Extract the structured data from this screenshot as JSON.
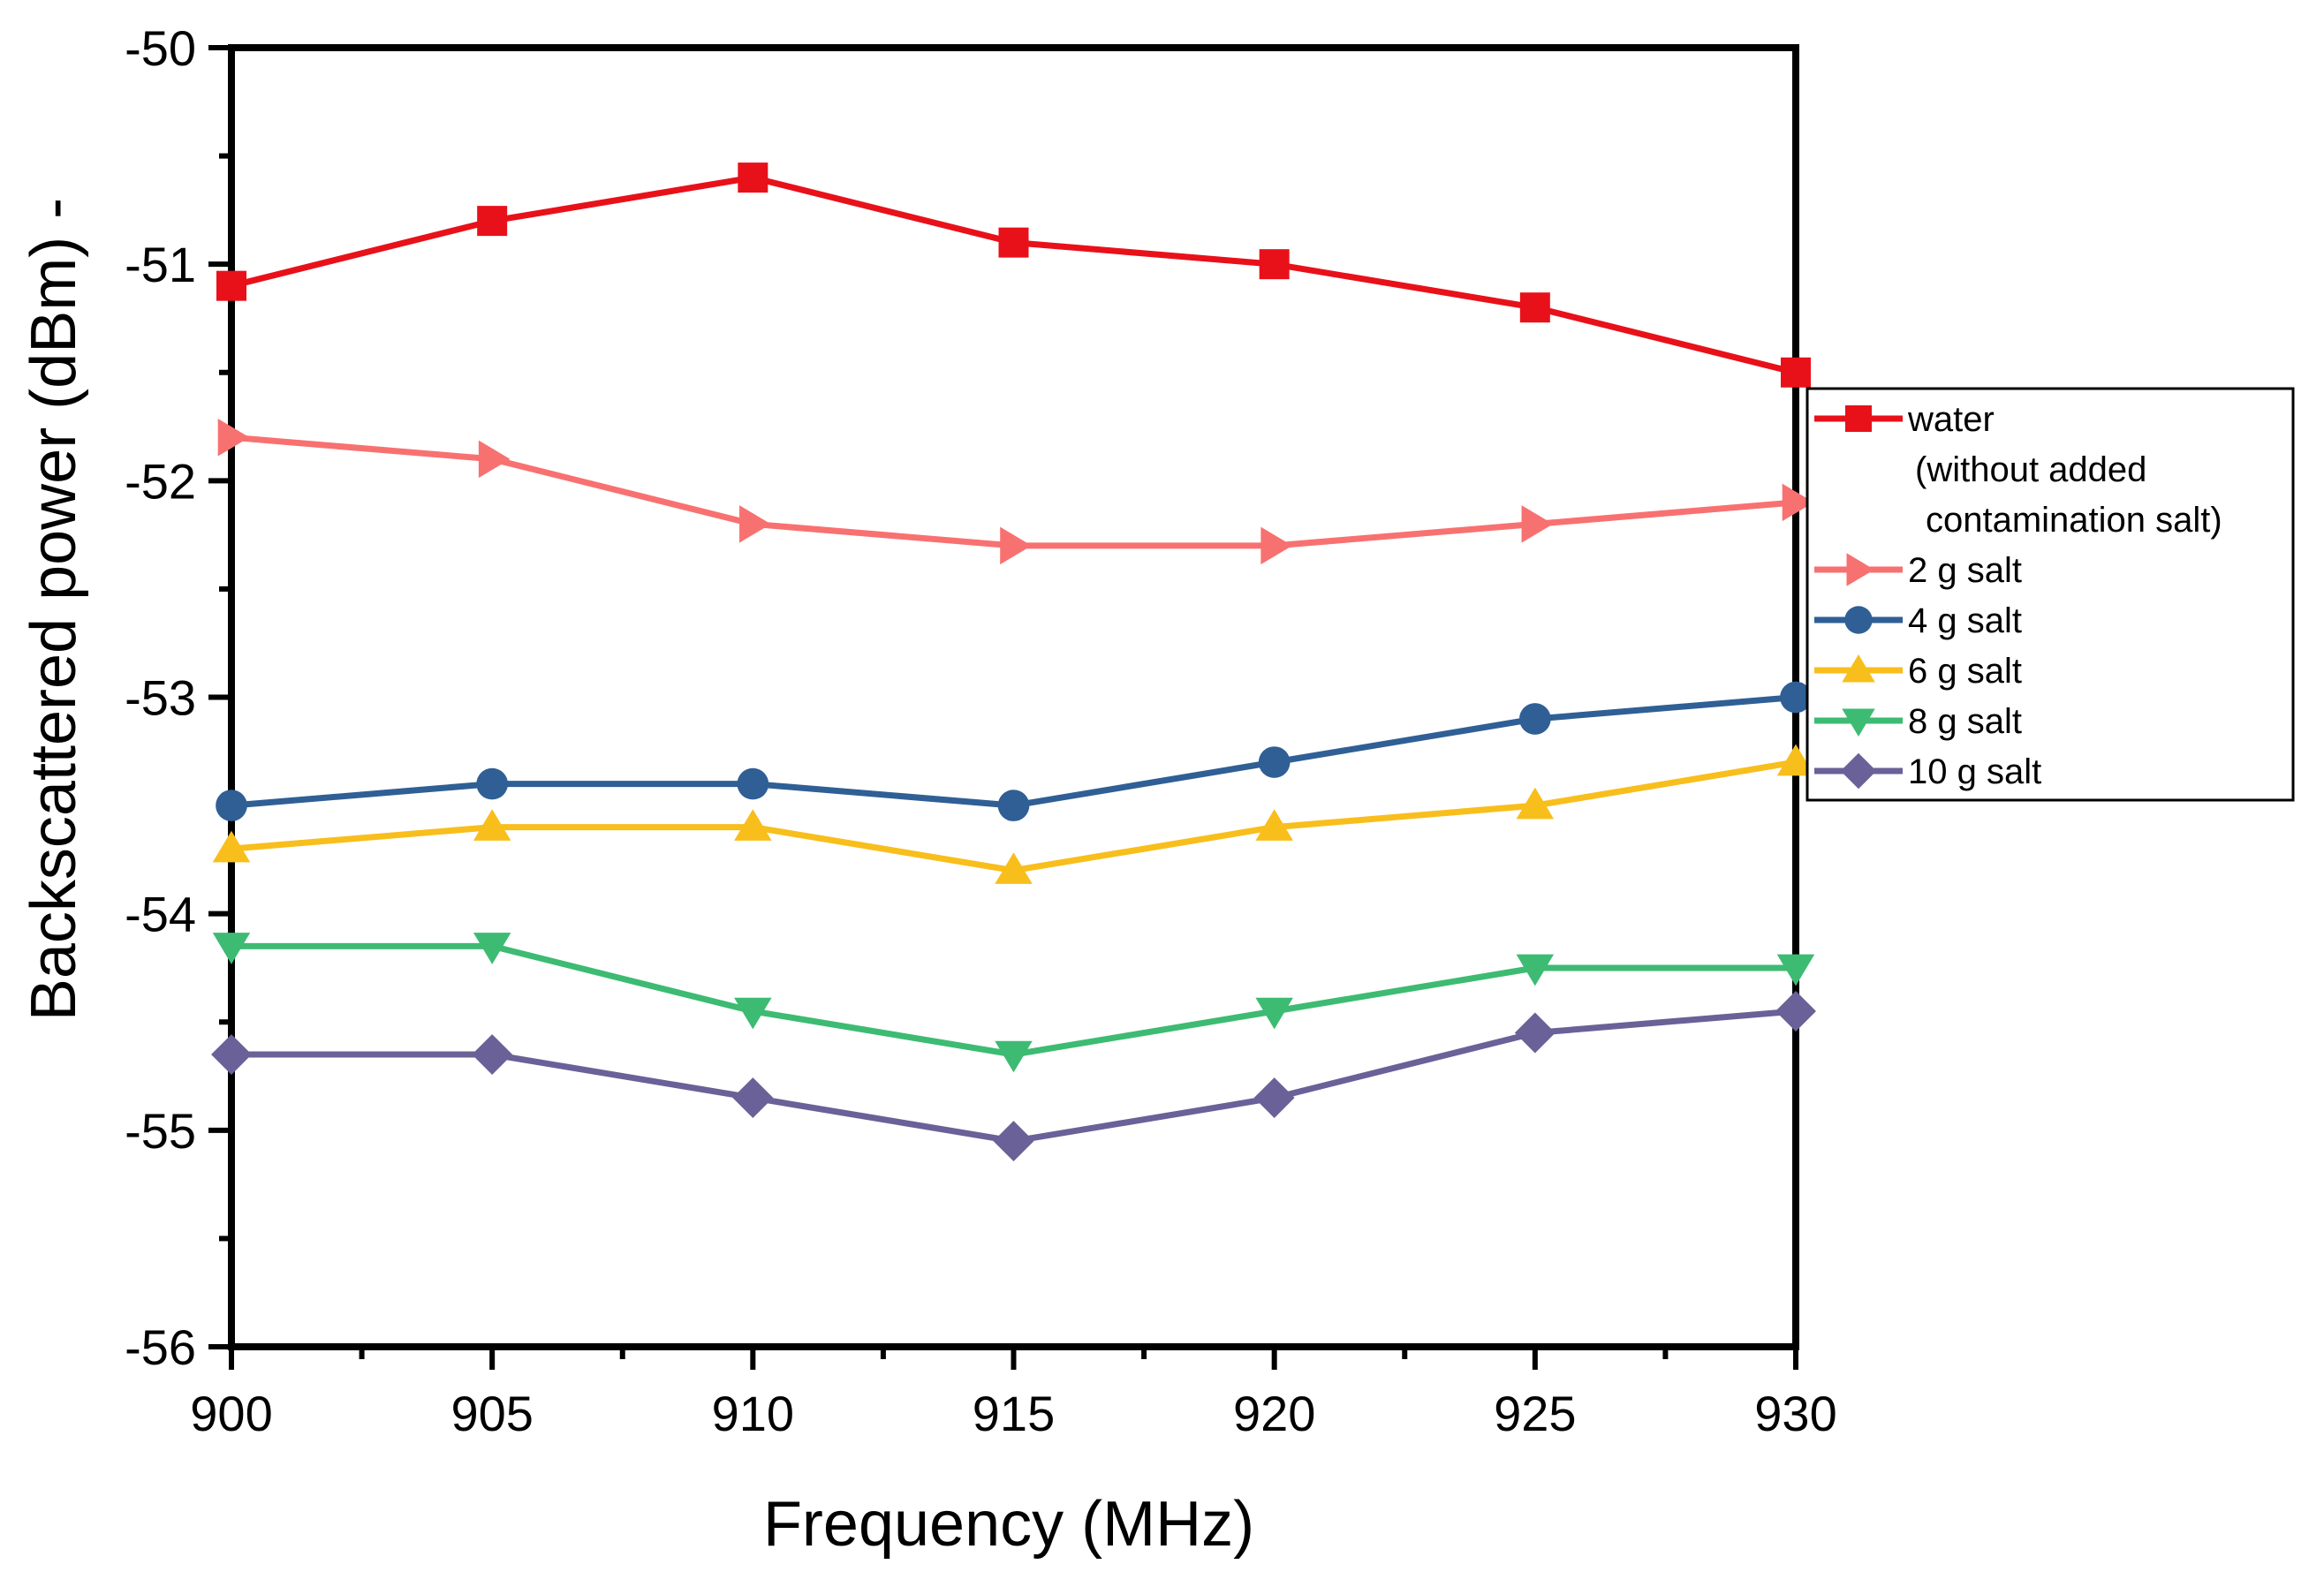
{
  "chart_data": {
    "type": "line",
    "title": "",
    "xlabel": "Frequency (MHz)",
    "ylabel": "Backscattered power (dBm) -",
    "xlim": [
      900,
      930
    ],
    "ylim": [
      -56,
      -50
    ],
    "x": [
      900,
      905,
      910,
      915,
      920,
      925,
      930
    ],
    "xticks": [
      "900",
      "905",
      "910",
      "915",
      "920",
      "925",
      "930"
    ],
    "yticks": [
      "-50",
      "-51",
      "-52",
      "-53",
      "-54",
      "-55",
      "-56"
    ],
    "ytick_values": [
      -50,
      -51,
      -52,
      -53,
      -54,
      -55,
      -56
    ],
    "grid": false,
    "legend_position": "right",
    "series": [
      {
        "name": "water",
        "note_lines": [
          "(without added",
          "contamination salt)"
        ],
        "color": "#E8111A",
        "marker": "square",
        "values": [
          -51.1,
          -50.8,
          -50.6,
          -50.9,
          -51.0,
          -51.2,
          -51.5
        ]
      },
      {
        "name": "2 g salt",
        "color": "#F87171",
        "marker": "triangle-right",
        "values": [
          -51.8,
          -51.9,
          -52.2,
          -52.3,
          -52.3,
          -52.2,
          -52.1
        ]
      },
      {
        "name": "4 g salt",
        "color": "#2F5F95",
        "marker": "circle",
        "values": [
          -53.5,
          -53.4,
          -53.4,
          -53.5,
          -53.3,
          -53.1,
          -53.0
        ]
      },
      {
        "name": "6 g salt",
        "color": "#F8BE1C",
        "marker": "triangle-up",
        "values": [
          -53.7,
          -53.6,
          -53.6,
          -53.8,
          -53.6,
          -53.5,
          -53.3
        ]
      },
      {
        "name": "8 g salt",
        "color": "#3DBB73",
        "marker": "triangle-down",
        "values": [
          -54.15,
          -54.15,
          -54.45,
          -54.65,
          -54.45,
          -54.25,
          -54.25
        ]
      },
      {
        "name": "10 g salt",
        "color": "#6A6198",
        "marker": "diamond",
        "values": [
          -54.65,
          -54.65,
          -54.85,
          -55.05,
          -54.85,
          -54.55,
          -54.45
        ]
      }
    ]
  }
}
